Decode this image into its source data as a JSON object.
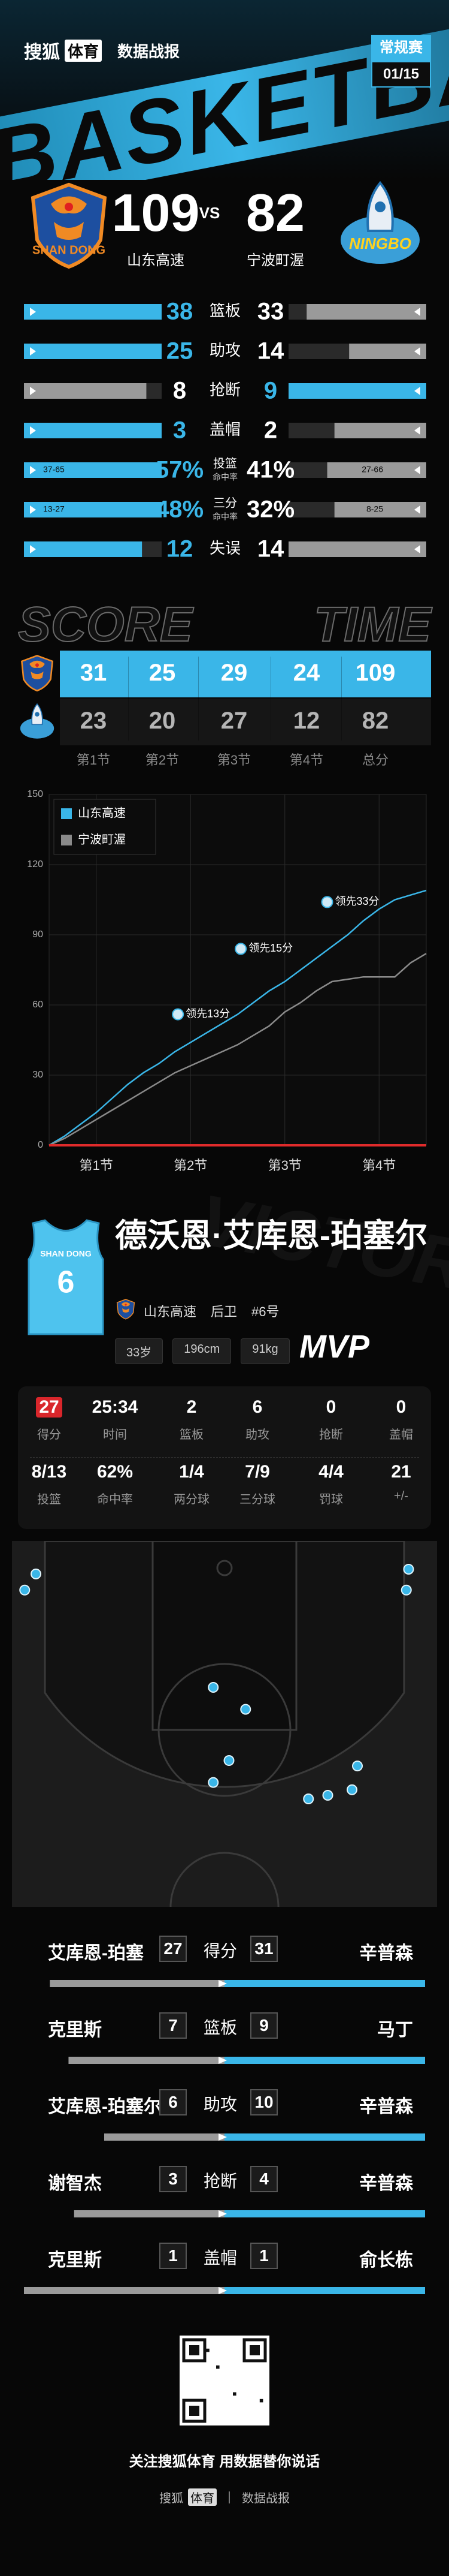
{
  "header": {
    "brand": "搜狐",
    "brand_tag": "体育",
    "section": "数据战报",
    "watermark": "BASKETBALL",
    "badge": "常规赛",
    "date": "01/15"
  },
  "game": {
    "home": {
      "name": "山东高速",
      "logo": "SHAN DONG",
      "score": 109
    },
    "vs": "VS",
    "away": {
      "name": "宁波町渥",
      "logo": "NINGBO",
      "score": 82
    }
  },
  "team_stats": [
    {
      "label": "篮板",
      "home": 38,
      "away": 33,
      "highlight": "home"
    },
    {
      "label": "助攻",
      "home": 25,
      "away": 14,
      "highlight": "home"
    },
    {
      "label": "抢断",
      "home": 8,
      "away": 9,
      "highlight": "away"
    },
    {
      "label": "盖帽",
      "home": 3,
      "away": 2,
      "highlight": "home"
    },
    {
      "label": "投篮",
      "sublabel": "命中率",
      "home": 57,
      "away": 41,
      "home_label": "57%",
      "away_label": "41%",
      "home_detail": "37-65",
      "away_detail": "27-66",
      "highlight": "home"
    },
    {
      "label": "三分",
      "sublabel": "命中率",
      "home": 48,
      "away": 32,
      "home_label": "48%",
      "away_label": "32%",
      "home_detail": "13-27",
      "away_detail": "8-25",
      "highlight": "home"
    },
    {
      "label": "失误",
      "home": 12,
      "away": 14,
      "highlight": "home"
    }
  ],
  "quarters": {
    "title_left": "SCORE",
    "title_right": "TIME",
    "labels": [
      "第1节",
      "第2节",
      "第3节",
      "第4节",
      "总分"
    ],
    "home": [
      31,
      25,
      29,
      24,
      109
    ],
    "away": [
      23,
      20,
      27,
      12,
      82
    ]
  },
  "chart_data": {
    "type": "line",
    "x": [
      0,
      2,
      4,
      6,
      8,
      10,
      12,
      14,
      16,
      18,
      20,
      22,
      24,
      26,
      28,
      30,
      32,
      34,
      36,
      38,
      40,
      42,
      44,
      46,
      48
    ],
    "series": [
      {
        "name": "山东高速",
        "color": "#3ab6e8",
        "values": [
          0,
          4,
          9,
          14,
          20,
          26,
          31,
          35,
          40,
          44,
          48,
          52,
          56,
          61,
          66,
          70,
          75,
          80,
          85,
          90,
          96,
          101,
          105,
          107,
          109
        ]
      },
      {
        "name": "宁波町渥",
        "color": "#8a8a8a",
        "values": [
          0,
          3,
          7,
          11,
          15,
          19,
          23,
          27,
          31,
          34,
          37,
          40,
          43,
          47,
          51,
          57,
          61,
          66,
          70,
          71,
          72,
          72,
          72,
          78,
          82
        ]
      }
    ],
    "xlim": [
      0,
      48
    ],
    "xticks": [
      {
        "value": 6,
        "label": "第1节"
      },
      {
        "value": 18,
        "label": "第2节"
      },
      {
        "value": 30,
        "label": "第3节"
      },
      {
        "value": 42,
        "label": "第4节"
      }
    ],
    "ylim": [
      0,
      150
    ],
    "yticks": [
      0,
      30,
      60,
      90,
      120,
      150
    ],
    "grid": true,
    "legend": "upper left",
    "annotations": [
      {
        "text": "领先13分",
        "x": 17,
        "y": 56
      },
      {
        "text": "领先15分",
        "x": 25,
        "y": 84
      },
      {
        "text": "领先33分",
        "x": 36,
        "y": 104
      }
    ]
  },
  "player": {
    "name": "德沃恩·艾库恩-珀塞尔",
    "team": "山东高速",
    "position": "后卫",
    "number": "#6号",
    "jersey": "6",
    "jersey_text": "SHAN DONG",
    "age": "33岁",
    "height": "196cm",
    "weight": "91kg",
    "badge": "MVP",
    "watermark": "VICTORY"
  },
  "player_stats": [
    {
      "value": 27,
      "label": "得分"
    },
    {
      "value": "25:34",
      "label": "时间"
    },
    {
      "value": 2,
      "label": "篮板"
    },
    {
      "value": 6,
      "label": "助攻"
    },
    {
      "value": 0,
      "label": "抢断"
    },
    {
      "value": 0,
      "label": "盖帽"
    },
    {
      "value": "8/13",
      "label": "投篮"
    },
    {
      "value": "62%",
      "label": "命中率"
    },
    {
      "value": "1/4",
      "label": "两分球"
    },
    {
      "value": "7/9",
      "label": "三分球"
    },
    {
      "value": "4/4",
      "label": "罚球"
    },
    {
      "value": 21,
      "label": "+/-"
    }
  ],
  "shots": [
    {
      "x": 5.5,
      "y": 13.4
    },
    {
      "x": 8,
      "y": 9
    },
    {
      "x": 91,
      "y": 7.7
    },
    {
      "x": 90.5,
      "y": 13.4
    },
    {
      "x": 47.5,
      "y": 40
    },
    {
      "x": 54.7,
      "y": 46
    },
    {
      "x": 51,
      "y": 60
    },
    {
      "x": 47.5,
      "y": 66
    },
    {
      "x": 68.7,
      "y": 70.5
    },
    {
      "x": 73,
      "y": 69.5
    },
    {
      "x": 78.4,
      "y": 68
    },
    {
      "x": 79.6,
      "y": 61.5
    }
  ],
  "leaders": [
    {
      "label": "得分",
      "home_player": "艾库恩-珀塞",
      "home": 27,
      "away": 31,
      "away_player": "辛普森"
    },
    {
      "label": "篮板",
      "home_player": "克里斯",
      "home": 7,
      "away": 9,
      "away_player": "马丁"
    },
    {
      "label": "助攻",
      "home_player": "艾库恩-珀塞尔",
      "home": 6,
      "away": 10,
      "away_player": "辛普森"
    },
    {
      "label": "抢断",
      "home_player": "谢智杰",
      "home": 3,
      "away": 4,
      "away_player": "辛普森"
    },
    {
      "label": "盖帽",
      "home_player": "克里斯",
      "home": 1,
      "away": 1,
      "away_player": "俞长栋"
    }
  ],
  "footer": {
    "follow": "关注搜狐体育 用数据替你说话",
    "brand": "搜狐",
    "brand_tag": "体育",
    "section": "数据战报"
  }
}
